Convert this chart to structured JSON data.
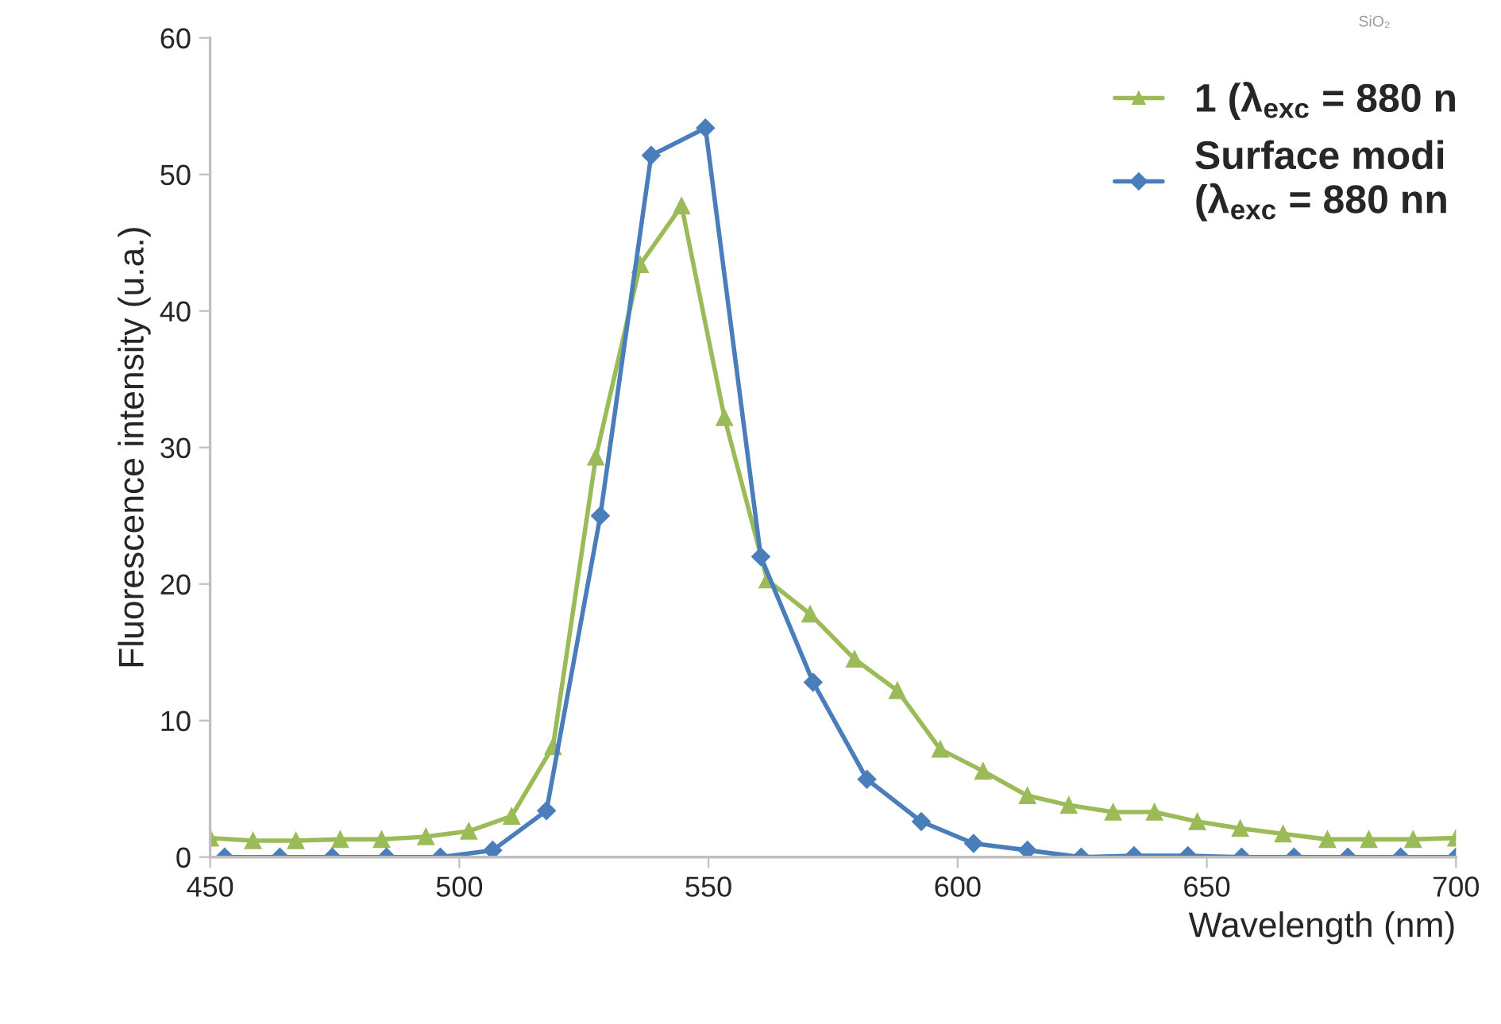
{
  "chart_data": {
    "type": "line",
    "xlabel": "Wavelength (nm)",
    "ylabel": "Fluorescence intensity (u.a.)",
    "xlim": [
      450,
      700
    ],
    "xticks": [
      450,
      500,
      550,
      600,
      650,
      700
    ],
    "ylim": [
      0,
      60
    ],
    "yticks": [
      0,
      10,
      20,
      30,
      40,
      50,
      60
    ],
    "grid": false,
    "legend": "top right",
    "line_style": "solid",
    "annotations": [
      "SiO₂"
    ],
    "series": [
      {
        "name": "1 (λ$_{exc}$ = 880 n",
        "color": "#9bbb59",
        "marker": "triangle",
        "x": [
          450,
          458.6,
          467.2,
          476.1,
          484.4,
          493.3,
          501.9,
          510.5,
          518.8,
          527.4,
          536.3,
          544.6,
          553.2,
          561.8,
          570.4,
          579.3,
          587.9,
          596.5,
          605.1,
          614.0,
          622.3,
          631.2,
          639.5,
          648.1,
          656.7,
          665.3,
          674.2,
          682.5,
          691.4,
          700
        ],
        "values": [
          1.4,
          1.2,
          1.2,
          1.3,
          1.3,
          1.5,
          1.9,
          3.0,
          8.1,
          29.3,
          43.4,
          47.7,
          32.2,
          20.3,
          17.8,
          14.5,
          12.2,
          7.9,
          6.3,
          4.5,
          3.8,
          3.3,
          3.3,
          2.6,
          2.1,
          1.7,
          1.3,
          1.3,
          1.3,
          1.4
        ]
      },
      {
        "name": "Surface modi\n(λ$_{exc}$ = 880 nn",
        "color": "#4a7ebb",
        "marker": "diamond",
        "x": [
          452.9,
          464.0,
          474.5,
          485.4,
          496.2,
          506.7,
          517.5,
          528.3,
          538.5,
          549.4,
          560.5,
          571.0,
          581.8,
          592.7,
          603.2,
          614.0,
          624.8,
          635.4,
          646.2,
          657.0,
          667.5,
          678.3,
          688.9,
          700.0
        ],
        "values": [
          0,
          0,
          0,
          0,
          0,
          0.5,
          3.4,
          25,
          51.4,
          53.4,
          22.0,
          12.8,
          5.7,
          2.6,
          1.0,
          0.5,
          0,
          0.1,
          0.1,
          0,
          0,
          0,
          0,
          0
        ]
      }
    ]
  }
}
